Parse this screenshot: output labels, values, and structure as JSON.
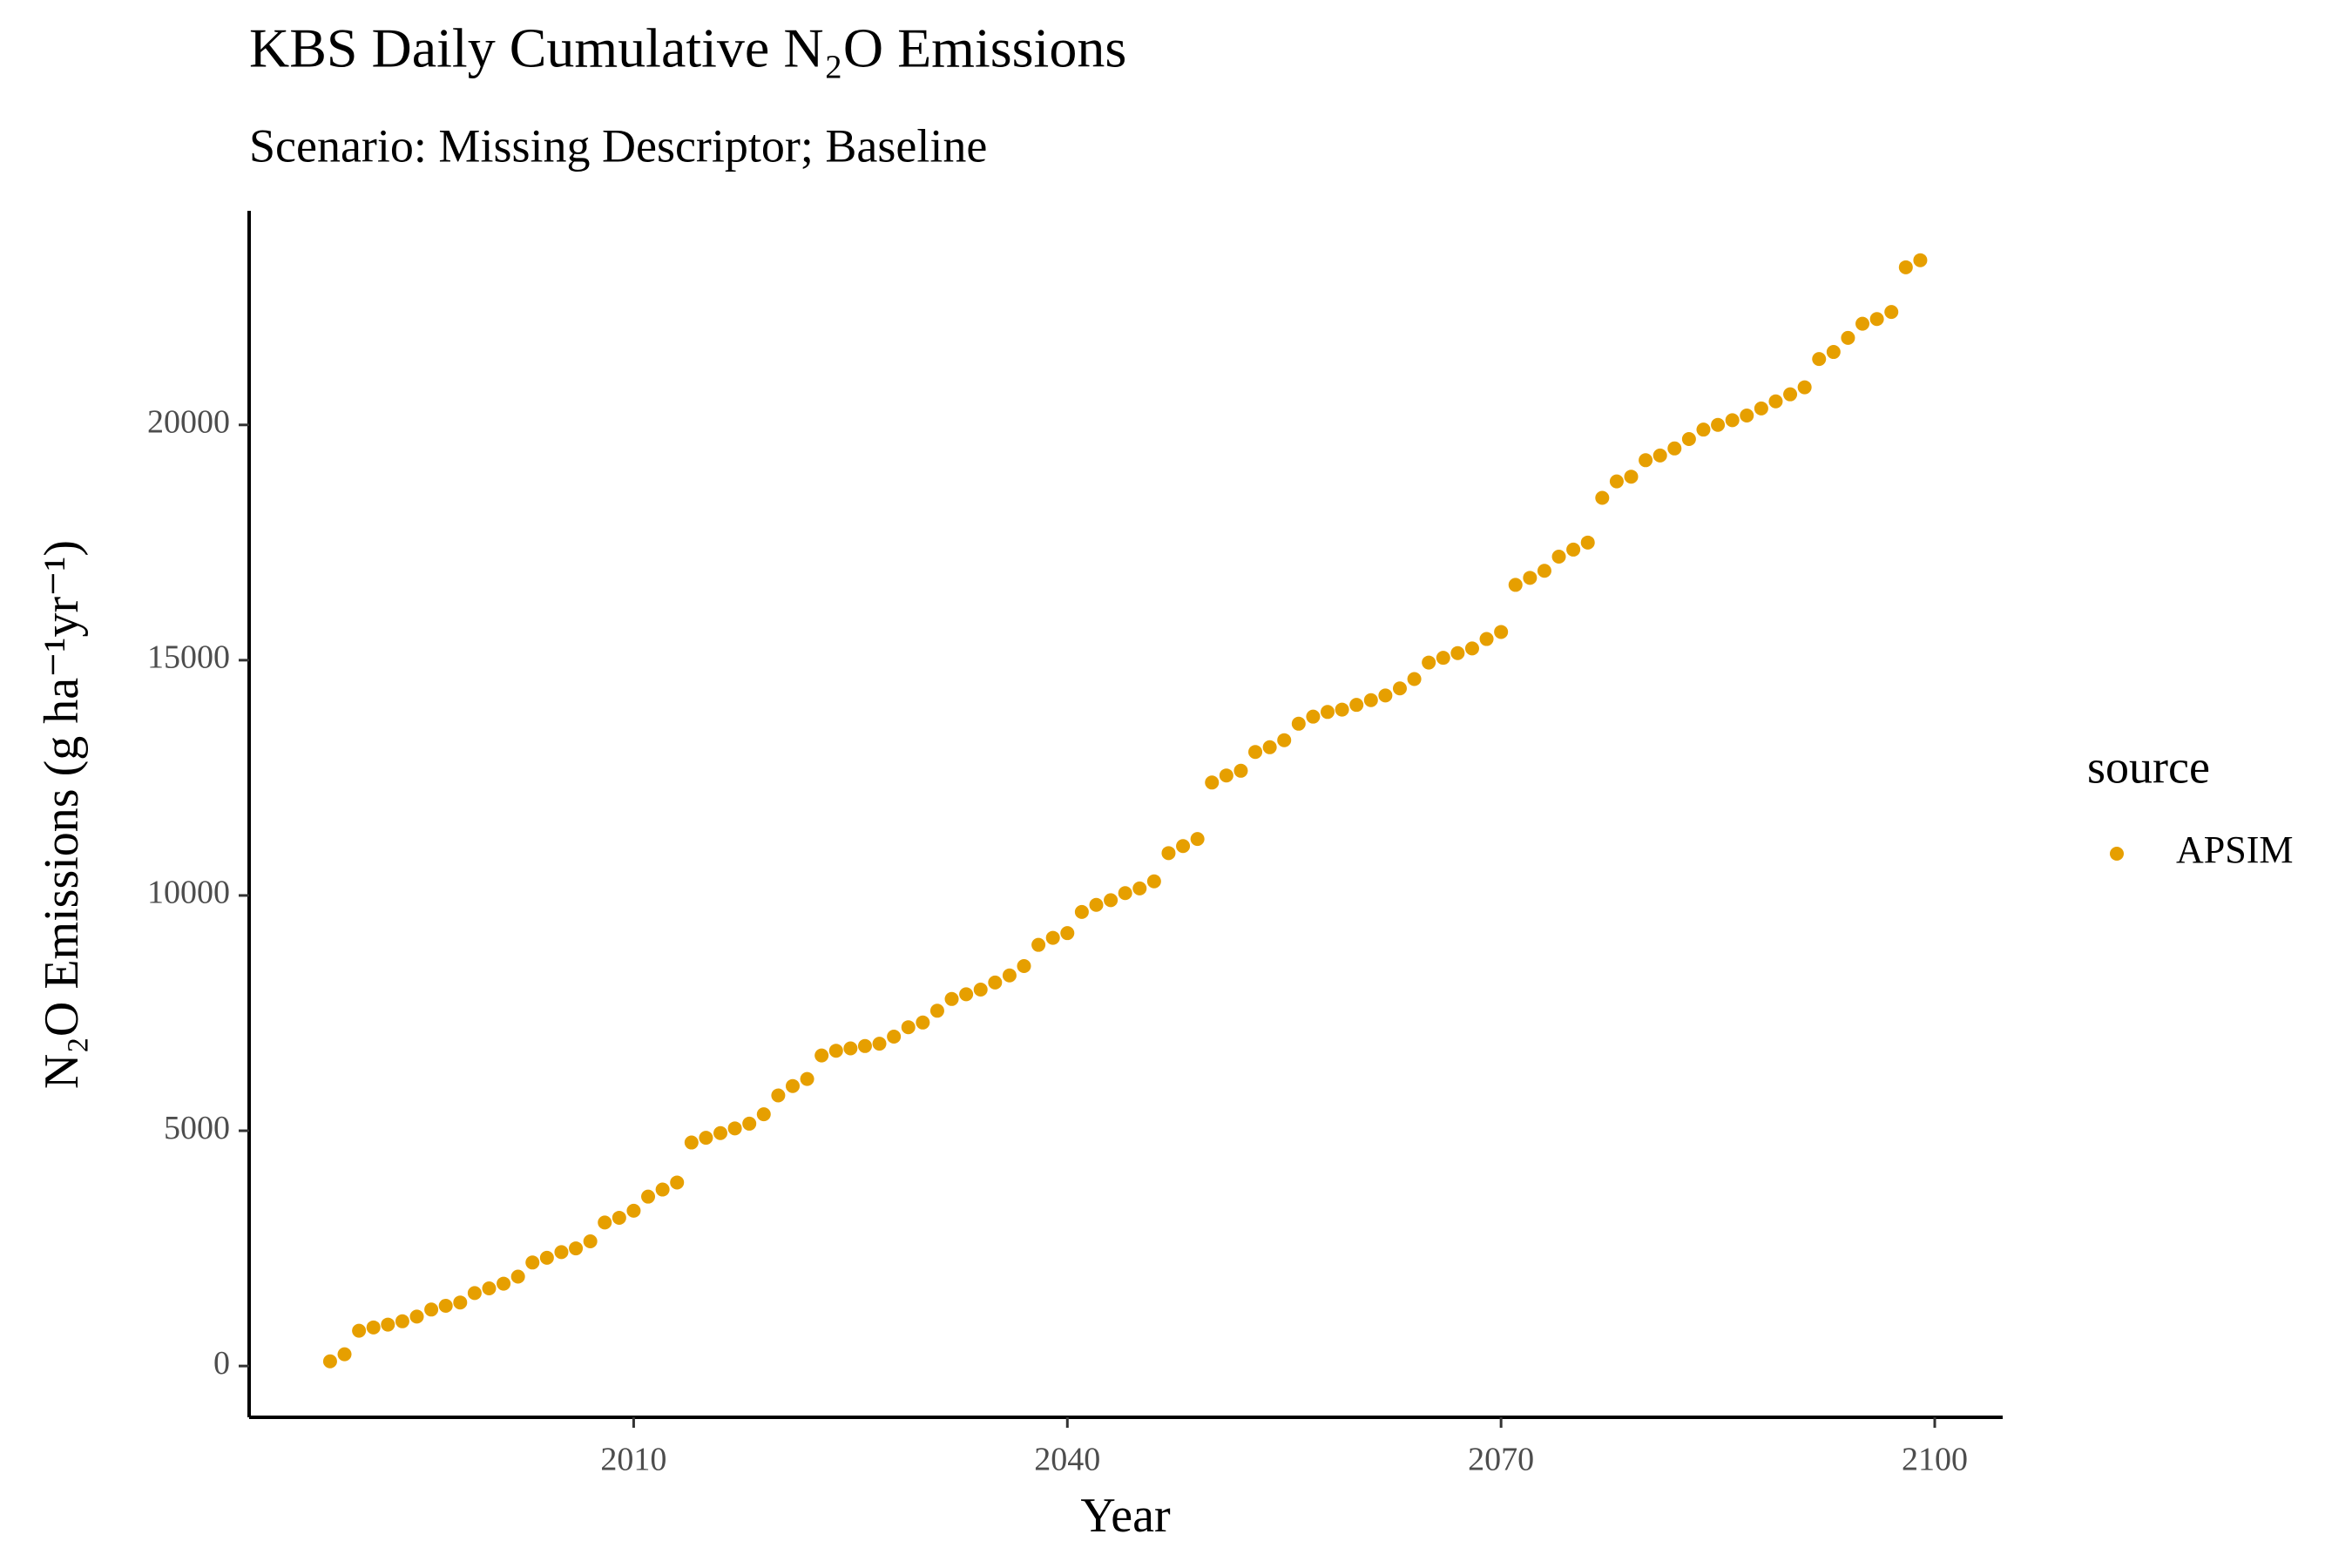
{
  "chart_data": {
    "type": "scatter",
    "title": "KBS Daily Cumulative N₂O Emissions",
    "subtitle": "Scenario: Missing Descriptor; Baseline",
    "x_label": "Year",
    "y_label": "N₂O Emissions (g ha⁻¹yr⁻¹)",
    "legend_title": "source",
    "legend_position": "right",
    "grid": false,
    "xlim": [
      1983.4,
      2104.7
    ],
    "ylim": [
      -1090,
      24550
    ],
    "xticks": [
      2010,
      2040,
      2070,
      2100
    ],
    "yticks": [
      0,
      5000,
      10000,
      15000,
      20000
    ],
    "x": [
      1989,
      1990,
      1991,
      1992,
      1993,
      1994,
      1995,
      1996,
      1997,
      1998,
      1999,
      2000,
      2001,
      2002,
      2003,
      2004,
      2005,
      2006,
      2007,
      2008,
      2009,
      2010,
      2011,
      2012,
      2013,
      2014,
      2015,
      2016,
      2017,
      2018,
      2019,
      2020,
      2021,
      2022,
      2023,
      2024,
      2025,
      2026,
      2027,
      2028,
      2029,
      2030,
      2031,
      2032,
      2033,
      2034,
      2035,
      2036,
      2037,
      2038,
      2039,
      2040,
      2041,
      2042,
      2043,
      2044,
      2045,
      2046,
      2047,
      2048,
      2049,
      2050,
      2051,
      2052,
      2053,
      2054,
      2055,
      2056,
      2057,
      2058,
      2059,
      2060,
      2061,
      2062,
      2063,
      2064,
      2065,
      2066,
      2067,
      2068,
      2069,
      2070,
      2071,
      2072,
      2073,
      2074,
      2075,
      2076,
      2077,
      2078,
      2079,
      2080,
      2081,
      2082,
      2083,
      2084,
      2085,
      2086,
      2087,
      2088,
      2089,
      2090,
      2091,
      2092,
      2093,
      2094,
      2095,
      2096,
      2097,
      2098,
      2099
    ],
    "series": [
      {
        "name": "APSIM",
        "color": "#E69F00",
        "values": [
          100,
          250,
          750,
          820,
          880,
          950,
          1050,
          1200,
          1280,
          1350,
          1550,
          1650,
          1750,
          1900,
          2200,
          2300,
          2420,
          2500,
          2650,
          3050,
          3150,
          3300,
          3600,
          3750,
          3900,
          4750,
          4850,
          4950,
          5050,
          5150,
          5350,
          5750,
          5950,
          6100,
          6600,
          6700,
          6750,
          6800,
          6850,
          7000,
          7200,
          7300,
          7550,
          7800,
          7900,
          8000,
          8150,
          8300,
          8500,
          8950,
          9100,
          9200,
          9650,
          9800,
          9900,
          10050,
          10150,
          10300,
          10900,
          11050,
          11200,
          12400,
          12550,
          12650,
          13050,
          13150,
          13300,
          13650,
          13800,
          13900,
          13950,
          14050,
          14150,
          14250,
          14400,
          14600,
          14950,
          15050,
          15150,
          15250,
          15450,
          15600,
          16600,
          16750,
          16900,
          17200,
          17350,
          17500,
          18450,
          18800,
          18900,
          19250,
          19350,
          19500,
          19700,
          19900,
          20000,
          20100,
          20200,
          20350,
          20500,
          20650,
          20800,
          21400,
          21550,
          21850,
          22150,
          22250,
          22400,
          23350,
          23500
        ]
      }
    ]
  }
}
